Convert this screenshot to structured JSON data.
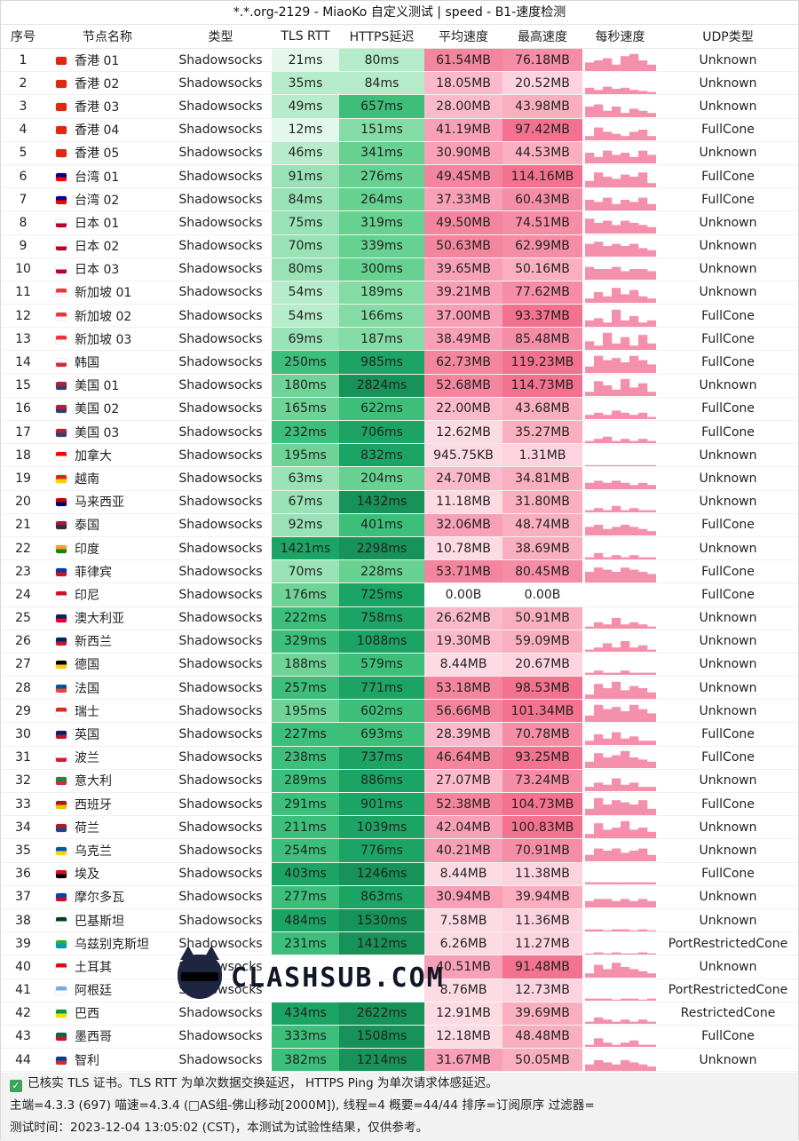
{
  "title": "*.*.org-2129 - MiaoKo 自定义测试 | speed - B1-速度检测",
  "headers": [
    "序号",
    "节点名称",
    "类型",
    "TLS RTT",
    "HTTPS延迟",
    "平均速度",
    "最高速度",
    "每秒速度",
    "UDP类型"
  ],
  "colors": {
    "rtt": [
      "#e4f7ec",
      "#b6ecca",
      "#98e2b5",
      "#6fd398",
      "#3bbf7b",
      "#1ca465"
    ],
    "https": [
      "#b4ebc8",
      "#84dca4",
      "#66d191",
      "#3dbf7a",
      "#1ca465",
      "#179258"
    ],
    "avg": [
      "#ffffff",
      "#fcdbe4",
      "#fbbacb",
      "#f7a0b7",
      "#f4859f"
    ],
    "max": [
      "#ffffff",
      "#fcd3de",
      "#faafc0",
      "#f68da6",
      "#f2728f"
    ],
    "spark": "#f590ac"
  },
  "rows": [
    {
      "idx": "1",
      "flag": "hk",
      "name": "香港 01",
      "type": "Shadowsocks",
      "rtt": "21ms",
      "https": "80ms",
      "avg": "61.54MB",
      "max": "76.18MB",
      "udp": "Unknown",
      "spark": [
        0.4,
        0.5,
        0.6,
        0.3,
        0.7,
        0.8,
        0.5,
        0.3
      ]
    },
    {
      "idx": "2",
      "flag": "hk",
      "name": "香港 02",
      "type": "Shadowsocks",
      "rtt": "35ms",
      "https": "84ms",
      "avg": "18.05MB",
      "max": "20.52MB",
      "udp": "Unknown",
      "spark": [
        0.3,
        0.2,
        0.35,
        0.25,
        0.3,
        0.2,
        0.15,
        0.1
      ]
    },
    {
      "idx": "3",
      "flag": "hk",
      "name": "香港 03",
      "type": "Shadowsocks",
      "rtt": "49ms",
      "https": "657ms",
      "avg": "28.00MB",
      "max": "43.98MB",
      "udp": "Unknown",
      "spark": [
        0.5,
        0.6,
        0.3,
        0.5,
        0.2,
        0.4,
        0.3,
        0.2
      ]
    },
    {
      "idx": "4",
      "flag": "hk",
      "name": "香港 04",
      "type": "Shadowsocks",
      "rtt": "12ms",
      "https": "151ms",
      "avg": "41.19MB",
      "max": "97.42MB",
      "udp": "FullCone",
      "spark": [
        0.2,
        0.6,
        0.4,
        0.3,
        0.2,
        0.4,
        0.5,
        0.2
      ]
    },
    {
      "idx": "5",
      "flag": "hk",
      "name": "香港 05",
      "type": "Shadowsocks",
      "rtt": "46ms",
      "https": "341ms",
      "avg": "30.90MB",
      "max": "44.53MB",
      "udp": "Unknown",
      "spark": [
        0.5,
        0.3,
        0.6,
        0.4,
        0.5,
        0.3,
        0.6,
        0.4
      ]
    },
    {
      "idx": "6",
      "flag": "tw",
      "name": "台湾 01",
      "type": "Shadowsocks",
      "rtt": "91ms",
      "https": "276ms",
      "avg": "49.45MB",
      "max": "114.16MB",
      "udp": "FullCone",
      "spark": [
        0.3,
        0.7,
        0.5,
        0.4,
        0.6,
        0.5,
        0.7,
        0.2
      ]
    },
    {
      "idx": "7",
      "flag": "tw",
      "name": "台湾 02",
      "type": "Shadowsocks",
      "rtt": "84ms",
      "https": "264ms",
      "avg": "37.33MB",
      "max": "60.43MB",
      "udp": "FullCone",
      "spark": [
        0.5,
        0.4,
        0.6,
        0.3,
        0.5,
        0.4,
        0.6,
        0.3
      ]
    },
    {
      "idx": "8",
      "flag": "jp",
      "name": "日本 01",
      "type": "Shadowsocks",
      "rtt": "75ms",
      "https": "319ms",
      "avg": "49.50MB",
      "max": "74.51MB",
      "udp": "Unknown",
      "spark": [
        0.7,
        0.5,
        0.6,
        0.4,
        0.6,
        0.5,
        0.4,
        0.3
      ]
    },
    {
      "idx": "9",
      "flag": "jp",
      "name": "日本 02",
      "type": "Shadowsocks",
      "rtt": "70ms",
      "https": "339ms",
      "avg": "50.63MB",
      "max": "62.99MB",
      "udp": "Unknown",
      "spark": [
        0.6,
        0.7,
        0.5,
        0.6,
        0.5,
        0.6,
        0.4,
        0.3
      ]
    },
    {
      "idx": "10",
      "flag": "jp",
      "name": "日本 03",
      "type": "Shadowsocks",
      "rtt": "80ms",
      "https": "300ms",
      "avg": "39.65MB",
      "max": "50.16MB",
      "udp": "Unknown",
      "spark": [
        0.6,
        0.5,
        0.5,
        0.6,
        0.4,
        0.5,
        0.5,
        0.4
      ]
    },
    {
      "idx": "11",
      "flag": "sg",
      "name": "新加坡 01",
      "type": "Shadowsocks",
      "rtt": "54ms",
      "https": "189ms",
      "avg": "39.21MB",
      "max": "77.62MB",
      "udp": "Unknown",
      "spark": [
        0.2,
        0.5,
        0.3,
        0.7,
        0.4,
        0.6,
        0.3,
        0.2
      ]
    },
    {
      "idx": "12",
      "flag": "sg",
      "name": "新加坡 02",
      "type": "Shadowsocks",
      "rtt": "54ms",
      "https": "166ms",
      "avg": "37.00MB",
      "max": "93.37MB",
      "udp": "FullCone",
      "spark": [
        0.3,
        0.4,
        0.2,
        0.8,
        0.3,
        0.5,
        0.2,
        0.3
      ]
    },
    {
      "idx": "13",
      "flag": "sg",
      "name": "新加坡 03",
      "type": "Shadowsocks",
      "rtt": "69ms",
      "https": "187ms",
      "avg": "38.49MB",
      "max": "85.48MB",
      "udp": "FullCone",
      "spark": [
        0.4,
        0.2,
        0.8,
        0.3,
        0.6,
        0.2,
        0.7,
        0.3
      ]
    },
    {
      "idx": "14",
      "flag": "kr",
      "name": "韩国",
      "type": "Shadowsocks",
      "rtt": "250ms",
      "https": "985ms",
      "avg": "62.73MB",
      "max": "119.23MB",
      "udp": "FullCone",
      "spark": [
        0.3,
        0.8,
        0.6,
        0.7,
        0.5,
        0.8,
        0.6,
        0.4
      ]
    },
    {
      "idx": "15",
      "flag": "us",
      "name": "美国 01",
      "type": "Shadowsocks",
      "rtt": "180ms",
      "https": "2824ms",
      "avg": "52.68MB",
      "max": "114.73MB",
      "udp": "Unknown",
      "spark": [
        0.2,
        0.7,
        0.5,
        0.3,
        0.8,
        0.4,
        0.6,
        0.2
      ]
    },
    {
      "idx": "16",
      "flag": "us",
      "name": "美国 02",
      "type": "Shadowsocks",
      "rtt": "165ms",
      "https": "622ms",
      "avg": "22.00MB",
      "max": "43.68MB",
      "udp": "FullCone",
      "spark": [
        0.2,
        0.3,
        0.2,
        0.4,
        0.3,
        0.2,
        0.3,
        0.1
      ]
    },
    {
      "idx": "17",
      "flag": "us",
      "name": "美国 03",
      "type": "Shadowsocks",
      "rtt": "232ms",
      "https": "706ms",
      "avg": "12.62MB",
      "max": "35.27MB",
      "udp": "FullCone",
      "spark": [
        0.1,
        0.2,
        0.3,
        0.1,
        0.2,
        0.1,
        0.2,
        0.1
      ]
    },
    {
      "idx": "18",
      "flag": "ca",
      "name": "加拿大",
      "type": "Shadowsocks",
      "rtt": "195ms",
      "https": "832ms",
      "avg": "945.75KB",
      "max": "1.31MB",
      "udp": "Unknown",
      "spark": [
        0.05,
        0.05,
        0.05,
        0.05,
        0.05,
        0.05,
        0.05,
        0.05
      ]
    },
    {
      "idx": "19",
      "flag": "vn",
      "name": "越南",
      "type": "Shadowsocks",
      "rtt": "63ms",
      "https": "204ms",
      "avg": "24.70MB",
      "max": "34.81MB",
      "udp": "Unknown",
      "spark": [
        0.3,
        0.4,
        0.3,
        0.4,
        0.3,
        0.2,
        0.3,
        0.2
      ]
    },
    {
      "idx": "20",
      "flag": "my",
      "name": "马来西亚",
      "type": "Shadowsocks",
      "rtt": "67ms",
      "https": "1432ms",
      "avg": "11.18MB",
      "max": "31.80MB",
      "udp": "Unknown",
      "spark": [
        0.1,
        0.2,
        0.1,
        0.3,
        0.1,
        0.2,
        0.1,
        0.1
      ]
    },
    {
      "idx": "21",
      "flag": "th",
      "name": "泰国",
      "type": "Shadowsocks",
      "rtt": "92ms",
      "https": "401ms",
      "avg": "32.06MB",
      "max": "48.74MB",
      "udp": "FullCone",
      "spark": [
        0.4,
        0.5,
        0.3,
        0.4,
        0.5,
        0.4,
        0.3,
        0.2
      ]
    },
    {
      "idx": "22",
      "flag": "in",
      "name": "印度",
      "type": "Shadowsocks",
      "rtt": "1421ms",
      "https": "2298ms",
      "avg": "10.78MB",
      "max": "38.69MB",
      "udp": "Unknown",
      "spark": [
        0.1,
        0.3,
        0.1,
        0.2,
        0.1,
        0.2,
        0.1,
        0.1
      ]
    },
    {
      "idx": "23",
      "flag": "ph",
      "name": "菲律宾",
      "type": "Shadowsocks",
      "rtt": "70ms",
      "https": "228ms",
      "avg": "53.71MB",
      "max": "80.45MB",
      "udp": "FullCone",
      "spark": [
        0.5,
        0.7,
        0.6,
        0.5,
        0.7,
        0.6,
        0.5,
        0.4
      ]
    },
    {
      "idx": "24",
      "flag": "id",
      "name": "印尼",
      "type": "Shadowsocks",
      "rtt": "176ms",
      "https": "725ms",
      "avg": "0.00B",
      "max": "0.00B",
      "udp": "FullCone",
      "spark": [
        0,
        0,
        0,
        0,
        0,
        0,
        0,
        0
      ]
    },
    {
      "idx": "25",
      "flag": "au",
      "name": "澳大利亚",
      "type": "Shadowsocks",
      "rtt": "222ms",
      "https": "758ms",
      "avg": "26.62MB",
      "max": "50.91MB",
      "udp": "Unknown",
      "spark": [
        0.1,
        0.3,
        0.2,
        0.5,
        0.2,
        0.3,
        0.2,
        0.1
      ]
    },
    {
      "idx": "26",
      "flag": "nz",
      "name": "新西兰",
      "type": "Shadowsocks",
      "rtt": "329ms",
      "https": "1088ms",
      "avg": "19.30MB",
      "max": "59.09MB",
      "udp": "Unknown",
      "spark": [
        0.1,
        0.2,
        0.4,
        0.2,
        0.5,
        0.2,
        0.3,
        0.1
      ]
    },
    {
      "idx": "27",
      "flag": "de",
      "name": "德国",
      "type": "Shadowsocks",
      "rtt": "188ms",
      "https": "579ms",
      "avg": "8.44MB",
      "max": "20.67MB",
      "udp": "Unknown",
      "spark": [
        0.1,
        0.2,
        0.1,
        0.1,
        0.2,
        0.1,
        0.1,
        0.1
      ]
    },
    {
      "idx": "28",
      "flag": "fr",
      "name": "法国",
      "type": "Shadowsocks",
      "rtt": "257ms",
      "https": "771ms",
      "avg": "53.18MB",
      "max": "98.53MB",
      "udp": "Unknown",
      "spark": [
        0.2,
        0.7,
        0.5,
        0.8,
        0.4,
        0.6,
        0.5,
        0.3
      ]
    },
    {
      "idx": "29",
      "flag": "ch",
      "name": "瑞士",
      "type": "Shadowsocks",
      "rtt": "195ms",
      "https": "602ms",
      "avg": "56.66MB",
      "max": "101.34MB",
      "udp": "Unknown",
      "spark": [
        0.3,
        0.8,
        0.6,
        0.7,
        0.5,
        0.8,
        0.6,
        0.4
      ]
    },
    {
      "idx": "30",
      "flag": "gb",
      "name": "英国",
      "type": "Shadowsocks",
      "rtt": "227ms",
      "https": "693ms",
      "avg": "28.39MB",
      "max": "70.78MB",
      "udp": "FullCone",
      "spark": [
        0.2,
        0.5,
        0.3,
        0.6,
        0.3,
        0.4,
        0.2,
        0.2
      ]
    },
    {
      "idx": "31",
      "flag": "pl",
      "name": "波兰",
      "type": "Shadowsocks",
      "rtt": "238ms",
      "https": "737ms",
      "avg": "46.64MB",
      "max": "93.25MB",
      "udp": "FullCone",
      "spark": [
        0.3,
        0.7,
        0.5,
        0.6,
        0.8,
        0.5,
        0.4,
        0.3
      ]
    },
    {
      "idx": "32",
      "flag": "it",
      "name": "意大利",
      "type": "Shadowsocks",
      "rtt": "289ms",
      "https": "886ms",
      "avg": "27.07MB",
      "max": "73.24MB",
      "udp": "Unknown",
      "spark": [
        0.2,
        0.4,
        0.3,
        0.6,
        0.3,
        0.4,
        0.2,
        0.2
      ]
    },
    {
      "idx": "33",
      "flag": "es",
      "name": "西班牙",
      "type": "Shadowsocks",
      "rtt": "291ms",
      "https": "901ms",
      "avg": "52.38MB",
      "max": "104.73MB",
      "udp": "FullCone",
      "spark": [
        0.3,
        0.8,
        0.5,
        0.7,
        0.6,
        0.5,
        0.7,
        0.3
      ]
    },
    {
      "idx": "34",
      "flag": "nl",
      "name": "荷兰",
      "type": "Shadowsocks",
      "rtt": "211ms",
      "https": "1039ms",
      "avg": "42.04MB",
      "max": "100.83MB",
      "udp": "Unknown",
      "spark": [
        0.2,
        0.7,
        0.4,
        0.5,
        0.8,
        0.4,
        0.5,
        0.3
      ]
    },
    {
      "idx": "35",
      "flag": "ua",
      "name": "乌克兰",
      "type": "Shadowsocks",
      "rtt": "254ms",
      "https": "776ms",
      "avg": "40.21MB",
      "max": "70.91MB",
      "udp": "Unknown",
      "spark": [
        0.3,
        0.6,
        0.5,
        0.6,
        0.4,
        0.5,
        0.6,
        0.3
      ]
    },
    {
      "idx": "36",
      "flag": "eg",
      "name": "埃及",
      "type": "Shadowsocks",
      "rtt": "403ms",
      "https": "1246ms",
      "avg": "8.44MB",
      "max": "11.38MB",
      "udp": "FullCone",
      "spark": [
        0.1,
        0.1,
        0.1,
        0.1,
        0.1,
        0.1,
        0.1,
        0.1
      ]
    },
    {
      "idx": "37",
      "flag": "md",
      "name": "摩尔多瓦",
      "type": "Shadowsocks",
      "rtt": "277ms",
      "https": "863ms",
      "avg": "30.94MB",
      "max": "39.94MB",
      "udp": "Unknown",
      "spark": [
        0.3,
        0.4,
        0.4,
        0.3,
        0.4,
        0.3,
        0.4,
        0.3
      ]
    },
    {
      "idx": "38",
      "flag": "pk",
      "name": "巴基斯坦",
      "type": "Shadowsocks",
      "rtt": "484ms",
      "https": "1530ms",
      "avg": "7.58MB",
      "max": "11.36MB",
      "udp": "Unknown",
      "spark": [
        0.1,
        0.1,
        0.05,
        0.1,
        0.1,
        0.05,
        0.1,
        0.05
      ]
    },
    {
      "idx": "39",
      "flag": "uz",
      "name": "乌兹别克斯坦",
      "type": "Shadowsocks",
      "rtt": "231ms",
      "https": "1412ms",
      "avg": "6.26MB",
      "max": "11.27MB",
      "udp": "PortRestrictedCone",
      "spark": [
        0.05,
        0.1,
        0.05,
        0.1,
        0.05,
        0.05,
        0.1,
        0.05
      ]
    },
    {
      "idx": "40",
      "flag": "tr",
      "name": "土耳其",
      "type": "Shadowsocks",
      "rtt": "",
      "https": "",
      "avg": "40.51MB",
      "max": "91.48MB",
      "udp": "Unknown",
      "spark": [
        0.2,
        0.6,
        0.4,
        0.7,
        0.5,
        0.4,
        0.3,
        0.2
      ]
    },
    {
      "idx": "41",
      "flag": "ar",
      "name": "阿根廷",
      "type": "Shadowsocks",
      "rtt": "",
      "https": "",
      "avg": "8.76MB",
      "max": "12.73MB",
      "udp": "PortRestrictedCone",
      "spark": [
        0.1,
        0.1,
        0.1,
        0.05,
        0.1,
        0.1,
        0.05,
        0.1
      ]
    },
    {
      "idx": "42",
      "flag": "br",
      "name": "巴西",
      "type": "Shadowsocks",
      "rtt": "434ms",
      "https": "2622ms",
      "avg": "12.91MB",
      "max": "39.69MB",
      "udp": "RestrictedCone",
      "spark": [
        0.1,
        0.3,
        0.2,
        0.1,
        0.2,
        0.1,
        0.2,
        0.1
      ]
    },
    {
      "idx": "43",
      "flag": "mx",
      "name": "墨西哥",
      "type": "Shadowsocks",
      "rtt": "333ms",
      "https": "1508ms",
      "avg": "12.18MB",
      "max": "48.48MB",
      "udp": "FullCone",
      "spark": [
        0.1,
        0.4,
        0.2,
        0.1,
        0.2,
        0.3,
        0.1,
        0.1
      ]
    },
    {
      "idx": "44",
      "flag": "cl",
      "name": "智利",
      "type": "Shadowsocks",
      "rtt": "382ms",
      "https": "1214ms",
      "avg": "31.67MB",
      "max": "50.05MB",
      "udp": "Unknown",
      "spark": [
        0.3,
        0.5,
        0.4,
        0.3,
        0.5,
        0.4,
        0.3,
        0.2
      ]
    }
  ],
  "flag_colors": {
    "hk": [
      "#de2910",
      "#de2910"
    ],
    "tw": [
      "#000095",
      "#fe0000"
    ],
    "jp": [
      "#ffffff",
      "#bc002d"
    ],
    "sg": [
      "#ef3340",
      "#ffffff"
    ],
    "kr": [
      "#ffffff",
      "#cd2e3a"
    ],
    "us": [
      "#b22234",
      "#3c3b6e"
    ],
    "ca": [
      "#ff0000",
      "#ffffff"
    ],
    "vn": [
      "#da251d",
      "#ffcd00"
    ],
    "my": [
      "#cc0001",
      "#010066"
    ],
    "th": [
      "#a51931",
      "#2d2a4a"
    ],
    "in": [
      "#ff9933",
      "#138808"
    ],
    "ph": [
      "#0038a8",
      "#ce1126"
    ],
    "id": [
      "#ce1126",
      "#ffffff"
    ],
    "au": [
      "#012169",
      "#e4002b"
    ],
    "nz": [
      "#012169",
      "#cc142b"
    ],
    "de": [
      "#000000",
      "#ffce00"
    ],
    "fr": [
      "#0055a4",
      "#ef4135"
    ],
    "ch": [
      "#d52b1e",
      "#ffffff"
    ],
    "gb": [
      "#012169",
      "#c8102e"
    ],
    "pl": [
      "#ffffff",
      "#dc143c"
    ],
    "it": [
      "#009246",
      "#ce2b37"
    ],
    "es": [
      "#aa151b",
      "#f1bf00"
    ],
    "nl": [
      "#ae1c28",
      "#21468b"
    ],
    "ua": [
      "#0057b7",
      "#ffd700"
    ],
    "eg": [
      "#ce1126",
      "#000000"
    ],
    "md": [
      "#0046ae",
      "#cc092f"
    ],
    "pk": [
      "#01411c",
      "#ffffff"
    ],
    "uz": [
      "#1eb53a",
      "#0099b5"
    ],
    "tr": [
      "#e30a17",
      "#ffffff"
    ],
    "ar": [
      "#74acdf",
      "#ffffff"
    ],
    "br": [
      "#009c3b",
      "#ffdf00"
    ],
    "mx": [
      "#006847",
      "#ce1126"
    ],
    "cl": [
      "#0039a6",
      "#d52b1e"
    ]
  },
  "footer": {
    "line1": "已核实 TLS 证书。TLS RTT 为单次数据交换延迟， HTTPS Ping 为单次请求体感延迟。",
    "line2": "主端=4.3.3 (697) 喵速=4.3.4 (□AS组-佛山移动[2000M]), 线程=4 概要=44/44 排序=订阅原序 过滤器=",
    "line3": "测试时间：2023-12-04 13:05:02 (CST)，本测试为试验性结果，仅供参考。"
  },
  "watermark": "CLASHSUB.COM"
}
